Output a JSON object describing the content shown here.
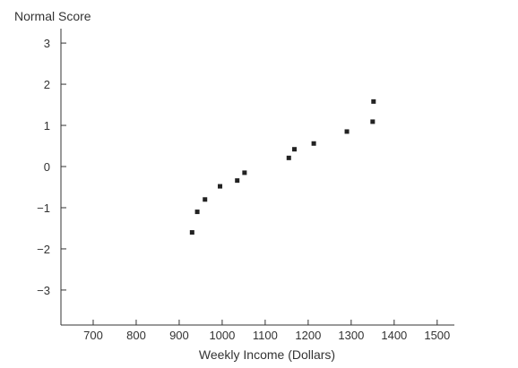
{
  "chart_data": {
    "type": "scatter",
    "title": "",
    "xlabel": "Weekly Income (Dollars)",
    "ylabel": "Normal Score",
    "xlim": [
      625,
      1540
    ],
    "ylim": [
      -3.85,
      3.35
    ],
    "x_ticks": [
      700,
      800,
      900,
      1000,
      1100,
      1200,
      1300,
      1400,
      1500
    ],
    "y_ticks": [
      3,
      2,
      1,
      0,
      -1,
      -2,
      -3
    ],
    "x_tick_labels": [
      "700",
      "800",
      "900",
      "1000",
      "1100",
      "1200",
      "1300",
      "1400",
      "1500"
    ],
    "y_tick_labels": [
      "3",
      "2",
      "1",
      "0",
      "−1",
      "−2",
      "−3"
    ],
    "grid": false,
    "points": [
      {
        "x": 930,
        "y": -1.6
      },
      {
        "x": 942,
        "y": -1.1
      },
      {
        "x": 960,
        "y": -0.8
      },
      {
        "x": 995,
        "y": -0.48
      },
      {
        "x": 1035,
        "y": -0.34
      },
      {
        "x": 1052,
        "y": -0.15
      },
      {
        "x": 1155,
        "y": 0.21
      },
      {
        "x": 1168,
        "y": 0.42
      },
      {
        "x": 1213,
        "y": 0.56
      },
      {
        "x": 1290,
        "y": 0.85
      },
      {
        "x": 1350,
        "y": 1.09
      },
      {
        "x": 1352,
        "y": 1.58
      }
    ]
  }
}
